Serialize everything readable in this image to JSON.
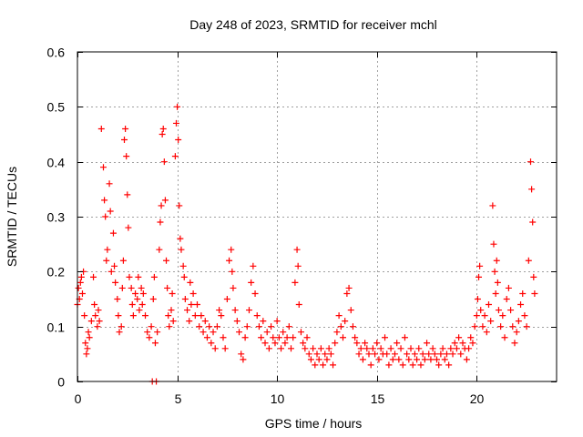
{
  "chart_data": {
    "type": "scatter",
    "title": "Day 248 of 2023, SRMTID for receiver mchl",
    "xlabel": "GPS time / hours",
    "ylabel": "SRMTID / TECUs",
    "xlim": [
      0,
      24
    ],
    "ylim": [
      0,
      0.6
    ],
    "xticks": [
      0,
      5,
      10,
      15,
      20
    ],
    "xtick_labels": [
      "0",
      "5",
      "10",
      "15",
      "20"
    ],
    "yticks": [
      0,
      0.1,
      0.2,
      0.3,
      0.4,
      0.5,
      0.6
    ],
    "ytick_labels": [
      "0",
      "0.1",
      "0.2",
      "0.3",
      "0.4",
      "0.5",
      "0.6"
    ],
    "grid": true,
    "marker": "plus",
    "series": [
      {
        "name": "SRMTID",
        "color": "#ff0000",
        "points": [
          [
            0.0,
            0.14
          ],
          [
            0.05,
            0.17
          ],
          [
            0.1,
            0.15
          ],
          [
            0.15,
            0.18
          ],
          [
            0.2,
            0.19
          ],
          [
            0.25,
            0.16
          ],
          [
            0.3,
            0.2
          ],
          [
            0.35,
            0.12
          ],
          [
            0.4,
            0.07
          ],
          [
            0.45,
            0.05
          ],
          [
            0.5,
            0.06
          ],
          [
            0.55,
            0.09
          ],
          [
            0.6,
            0.08
          ],
          [
            0.7,
            0.11
          ],
          [
            0.8,
            0.19
          ],
          [
            0.85,
            0.14
          ],
          [
            0.9,
            0.12
          ],
          [
            1.0,
            0.1
          ],
          [
            1.05,
            0.13
          ],
          [
            1.1,
            0.11
          ],
          [
            1.2,
            0.46
          ],
          [
            1.3,
            0.39
          ],
          [
            1.35,
            0.33
          ],
          [
            1.4,
            0.3
          ],
          [
            1.45,
            0.22
          ],
          [
            1.5,
            0.24
          ],
          [
            1.6,
            0.36
          ],
          [
            1.65,
            0.31
          ],
          [
            1.7,
            0.2
          ],
          [
            1.8,
            0.27
          ],
          [
            1.85,
            0.21
          ],
          [
            1.9,
            0.18
          ],
          [
            2.0,
            0.15
          ],
          [
            2.05,
            0.12
          ],
          [
            2.1,
            0.09
          ],
          [
            2.2,
            0.1
          ],
          [
            2.25,
            0.17
          ],
          [
            2.3,
            0.22
          ],
          [
            2.35,
            0.44
          ],
          [
            2.4,
            0.46
          ],
          [
            2.45,
            0.41
          ],
          [
            2.5,
            0.34
          ],
          [
            2.55,
            0.28
          ],
          [
            2.6,
            0.19
          ],
          [
            2.7,
            0.17
          ],
          [
            2.75,
            0.14
          ],
          [
            2.8,
            0.12
          ],
          [
            2.9,
            0.16
          ],
          [
            3.0,
            0.15
          ],
          [
            3.05,
            0.19
          ],
          [
            3.1,
            0.13
          ],
          [
            3.2,
            0.17
          ],
          [
            3.25,
            0.14
          ],
          [
            3.3,
            0.16
          ],
          [
            3.4,
            0.12
          ],
          [
            3.5,
            0.09
          ],
          [
            3.6,
            0.08
          ],
          [
            3.7,
            0.1
          ],
          [
            3.8,
            0.15
          ],
          [
            3.85,
            0.19
          ],
          [
            3.9,
            0.07
          ],
          [
            4.0,
            0.09
          ],
          [
            4.1,
            0.24
          ],
          [
            4.15,
            0.29
          ],
          [
            4.2,
            0.32
          ],
          [
            4.25,
            0.45
          ],
          [
            4.3,
            0.46
          ],
          [
            4.35,
            0.4
          ],
          [
            4.4,
            0.33
          ],
          [
            4.45,
            0.22
          ],
          [
            4.5,
            0.17
          ],
          [
            4.55,
            0.12
          ],
          [
            4.6,
            0.1
          ],
          [
            4.7,
            0.13
          ],
          [
            4.75,
            0.16
          ],
          [
            4.8,
            0.11
          ],
          [
            4.9,
            0.41
          ],
          [
            4.95,
            0.47
          ],
          [
            5.0,
            0.5
          ],
          [
            5.05,
            0.44
          ],
          [
            5.1,
            0.32
          ],
          [
            5.15,
            0.26
          ],
          [
            5.2,
            0.24
          ],
          [
            5.3,
            0.21
          ],
          [
            5.35,
            0.19
          ],
          [
            5.4,
            0.15
          ],
          [
            5.5,
            0.13
          ],
          [
            5.6,
            0.11
          ],
          [
            5.65,
            0.18
          ],
          [
            5.7,
            0.14
          ],
          [
            5.8,
            0.16
          ],
          [
            5.9,
            0.12
          ],
          [
            6.0,
            0.14
          ],
          [
            6.1,
            0.1
          ],
          [
            6.2,
            0.12
          ],
          [
            6.3,
            0.09
          ],
          [
            6.4,
            0.11
          ],
          [
            6.5,
            0.08
          ],
          [
            6.6,
            0.1
          ],
          [
            6.7,
            0.07
          ],
          [
            6.8,
            0.09
          ],
          [
            6.9,
            0.06
          ],
          [
            7.0,
            0.1
          ],
          [
            7.1,
            0.13
          ],
          [
            7.2,
            0.12
          ],
          [
            7.3,
            0.08
          ],
          [
            7.4,
            0.06
          ],
          [
            7.5,
            0.15
          ],
          [
            7.6,
            0.22
          ],
          [
            7.7,
            0.24
          ],
          [
            7.75,
            0.2
          ],
          [
            7.8,
            0.17
          ],
          [
            7.9,
            0.13
          ],
          [
            8.0,
            0.11
          ],
          [
            8.1,
            0.09
          ],
          [
            8.2,
            0.05
          ],
          [
            8.3,
            0.04
          ],
          [
            8.4,
            0.08
          ],
          [
            8.5,
            0.1
          ],
          [
            8.6,
            0.13
          ],
          [
            8.7,
            0.18
          ],
          [
            8.8,
            0.21
          ],
          [
            8.9,
            0.16
          ],
          [
            9.0,
            0.12
          ],
          [
            9.1,
            0.1
          ],
          [
            9.2,
            0.08
          ],
          [
            9.3,
            0.11
          ],
          [
            9.4,
            0.07
          ],
          [
            9.5,
            0.09
          ],
          [
            9.6,
            0.06
          ],
          [
            9.7,
            0.1
          ],
          [
            9.8,
            0.08
          ],
          [
            9.9,
            0.07
          ],
          [
            10.0,
            0.11
          ],
          [
            10.1,
            0.08
          ],
          [
            10.2,
            0.06
          ],
          [
            10.3,
            0.09
          ],
          [
            10.4,
            0.07
          ],
          [
            10.5,
            0.08
          ],
          [
            10.6,
            0.1
          ],
          [
            10.7,
            0.06
          ],
          [
            10.8,
            0.08
          ],
          [
            10.9,
            0.18
          ],
          [
            11.0,
            0.24
          ],
          [
            11.05,
            0.21
          ],
          [
            11.1,
            0.14
          ],
          [
            11.2,
            0.09
          ],
          [
            11.3,
            0.07
          ],
          [
            11.4,
            0.06
          ],
          [
            11.5,
            0.08
          ],
          [
            11.6,
            0.05
          ],
          [
            11.7,
            0.04
          ],
          [
            11.8,
            0.06
          ],
          [
            11.9,
            0.03
          ],
          [
            12.0,
            0.05
          ],
          [
            12.1,
            0.04
          ],
          [
            12.2,
            0.06
          ],
          [
            12.3,
            0.03
          ],
          [
            12.4,
            0.05
          ],
          [
            12.5,
            0.04
          ],
          [
            12.6,
            0.06
          ],
          [
            12.7,
            0.05
          ],
          [
            12.8,
            0.03
          ],
          [
            12.9,
            0.07
          ],
          [
            13.0,
            0.09
          ],
          [
            13.1,
            0.12
          ],
          [
            13.2,
            0.1
          ],
          [
            13.3,
            0.08
          ],
          [
            13.4,
            0.11
          ],
          [
            13.5,
            0.16
          ],
          [
            13.6,
            0.17
          ],
          [
            13.7,
            0.13
          ],
          [
            13.8,
            0.1
          ],
          [
            13.9,
            0.08
          ],
          [
            14.0,
            0.07
          ],
          [
            14.1,
            0.05
          ],
          [
            14.2,
            0.06
          ],
          [
            14.3,
            0.04
          ],
          [
            14.4,
            0.07
          ],
          [
            14.5,
            0.06
          ],
          [
            14.6,
            0.05
          ],
          [
            14.7,
            0.03
          ],
          [
            14.8,
            0.06
          ],
          [
            14.9,
            0.05
          ],
          [
            15.0,
            0.07
          ],
          [
            15.1,
            0.04
          ],
          [
            15.2,
            0.06
          ],
          [
            15.3,
            0.05
          ],
          [
            15.4,
            0.08
          ],
          [
            15.5,
            0.05
          ],
          [
            15.6,
            0.03
          ],
          [
            15.7,
            0.06
          ],
          [
            15.8,
            0.04
          ],
          [
            15.9,
            0.05
          ],
          [
            16.0,
            0.07
          ],
          [
            16.1,
            0.04
          ],
          [
            16.2,
            0.06
          ],
          [
            16.3,
            0.03
          ],
          [
            16.4,
            0.08
          ],
          [
            16.5,
            0.05
          ],
          [
            16.6,
            0.04
          ],
          [
            16.7,
            0.06
          ],
          [
            16.8,
            0.03
          ],
          [
            16.9,
            0.05
          ],
          [
            17.0,
            0.04
          ],
          [
            17.1,
            0.06
          ],
          [
            17.2,
            0.03
          ],
          [
            17.3,
            0.05
          ],
          [
            17.4,
            0.04
          ],
          [
            17.5,
            0.07
          ],
          [
            17.6,
            0.05
          ],
          [
            17.7,
            0.04
          ],
          [
            17.8,
            0.06
          ],
          [
            17.9,
            0.05
          ],
          [
            18.0,
            0.04
          ],
          [
            18.1,
            0.03
          ],
          [
            18.2,
            0.05
          ],
          [
            18.3,
            0.06
          ],
          [
            18.4,
            0.04
          ],
          [
            18.5,
            0.05
          ],
          [
            18.6,
            0.03
          ],
          [
            18.7,
            0.06
          ],
          [
            18.8,
            0.05
          ],
          [
            18.9,
            0.07
          ],
          [
            19.0,
            0.06
          ],
          [
            19.1,
            0.08
          ],
          [
            19.2,
            0.05
          ],
          [
            19.3,
            0.07
          ],
          [
            19.4,
            0.06
          ],
          [
            19.5,
            0.04
          ],
          [
            19.6,
            0.06
          ],
          [
            19.7,
            0.08
          ],
          [
            19.8,
            0.07
          ],
          [
            19.9,
            0.1
          ],
          [
            20.0,
            0.12
          ],
          [
            20.05,
            0.15
          ],
          [
            20.1,
            0.19
          ],
          [
            20.15,
            0.21
          ],
          [
            20.2,
            0.13
          ],
          [
            20.3,
            0.1
          ],
          [
            20.4,
            0.12
          ],
          [
            20.5,
            0.09
          ],
          [
            20.6,
            0.14
          ],
          [
            20.7,
            0.11
          ],
          [
            20.8,
            0.32
          ],
          [
            20.85,
            0.25
          ],
          [
            20.9,
            0.2
          ],
          [
            20.95,
            0.16
          ],
          [
            21.0,
            0.22
          ],
          [
            21.05,
            0.18
          ],
          [
            21.1,
            0.13
          ],
          [
            21.2,
            0.1
          ],
          [
            21.3,
            0.12
          ],
          [
            21.4,
            0.08
          ],
          [
            21.5,
            0.15
          ],
          [
            21.6,
            0.17
          ],
          [
            21.7,
            0.13
          ],
          [
            21.8,
            0.1
          ],
          [
            21.9,
            0.07
          ],
          [
            22.0,
            0.09
          ],
          [
            22.1,
            0.11
          ],
          [
            22.2,
            0.14
          ],
          [
            22.3,
            0.16
          ],
          [
            22.4,
            0.12
          ],
          [
            22.5,
            0.1
          ],
          [
            22.6,
            0.22
          ],
          [
            22.7,
            0.4
          ],
          [
            22.75,
            0.35
          ],
          [
            22.8,
            0.29
          ],
          [
            22.85,
            0.19
          ],
          [
            22.9,
            0.16
          ],
          [
            3.75,
            0.0
          ],
          [
            3.95,
            0.0
          ]
        ]
      }
    ]
  }
}
